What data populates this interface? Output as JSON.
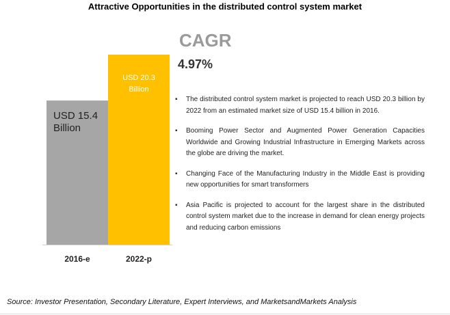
{
  "chart_data": {
    "type": "bar",
    "title": "Attractive Opportunities in the distributed control system market",
    "categories": [
      "2016-e",
      "2022-p"
    ],
    "values": [
      15.4,
      20.3
    ],
    "value_labels": [
      "USD 15.4 Billion",
      "USD 20.3 Billion"
    ],
    "units": "USD Billion",
    "colors": [
      "#a6a6a6",
      "#ffc000"
    ],
    "xlabel": "",
    "ylabel": "",
    "ylim": [
      0,
      20.3
    ],
    "grid": false,
    "legend": "none"
  },
  "cagr": {
    "label": "CAGR",
    "value": "4.97%"
  },
  "bullets": [
    "The distributed control system market is projected to reach USD 20.3 billion by 2022 from an estimated market size of USD 15.4 billion in 2016.",
    "Booming Power Sector and Augmented Power Generation Capacities Worldwide and Growing Industrial Infrastructure in Emerging Markets across the globe are driving the market.",
    "Changing Face of the Manufacturing Industry in the Middle East is providing new opportunities for smart transformers",
    "Asia Pacific is projected to account for the largest share in the distributed control system market due to the increase in demand for clean energy projects and reducing carbon emissions"
  ],
  "source": "Source: Investor Presentation, Secondary Literature, Expert Interviews, and MarketsandMarkets Analysis"
}
